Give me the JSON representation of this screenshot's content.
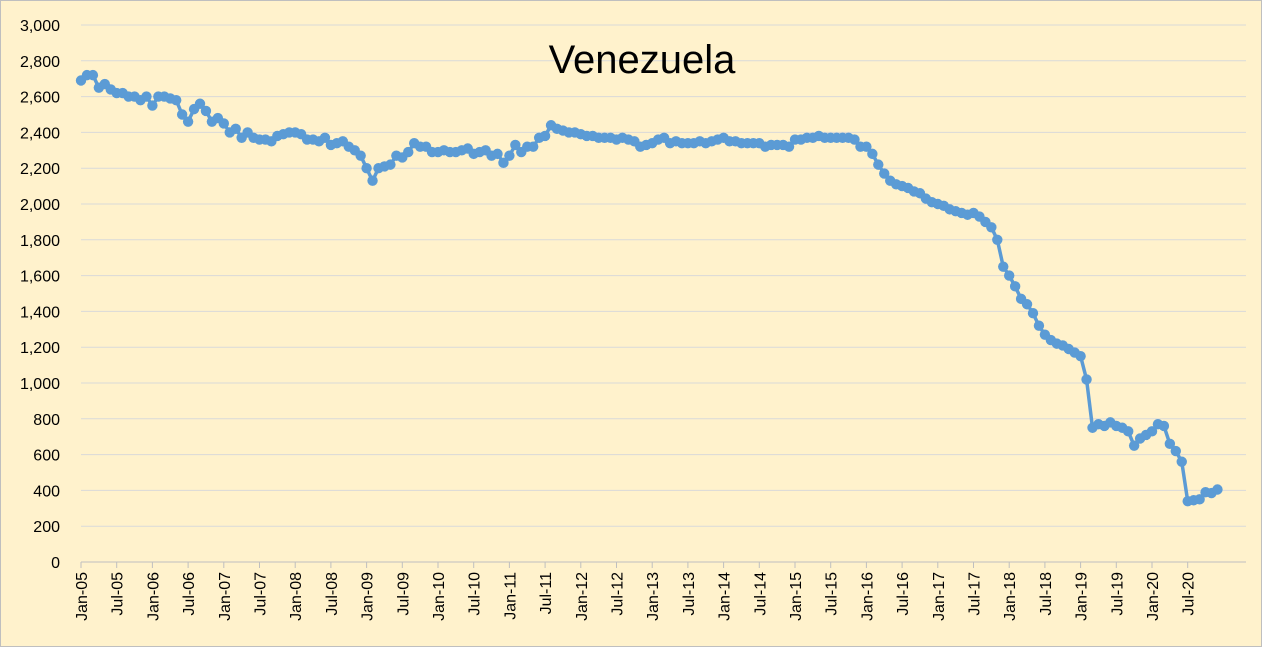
{
  "chart_data": {
    "type": "line",
    "title": "Venezuela",
    "xlabel": "",
    "ylabel": "",
    "ylim": [
      0,
      3000
    ],
    "y_ticks": [
      "0",
      "200",
      "400",
      "600",
      "800",
      "1,000",
      "1,200",
      "1,400",
      "1,600",
      "1,800",
      "2,000",
      "2,200",
      "2,400",
      "2,600",
      "2,800",
      "3,000"
    ],
    "x_ticks": [
      "Jan-05",
      "Jul-05",
      "Jan-06",
      "Jul-06",
      "Jan-07",
      "Jul-07",
      "Jan-08",
      "Jul-08",
      "Jan-09",
      "Jul-09",
      "Jan-10",
      "Jul-10",
      "Jan-11",
      "Jul-11",
      "Jan-12",
      "Jul-12",
      "Jan-13",
      "Jul-13",
      "Jan-14",
      "Jul-14",
      "Jan-15",
      "Jul-15",
      "Jan-16",
      "Jul-16",
      "Jan-17",
      "Jul-17",
      "Jan-18",
      "Jul-18",
      "Jan-19",
      "Jul-19",
      "Jan-20",
      "Jul-20"
    ],
    "grid": true,
    "legend": "none",
    "colors": {
      "series": "#5b9bd5",
      "background": "#fff2cc",
      "grid": "#d9d9d9"
    },
    "series": [
      {
        "x_start": "Jan-05",
        "frequency": "monthly",
        "values": [
          2690,
          2720,
          2720,
          2650,
          2670,
          2640,
          2620,
          2620,
          2600,
          2600,
          2580,
          2600,
          2550,
          2600,
          2600,
          2590,
          2580,
          2500,
          2460,
          2530,
          2560,
          2520,
          2460,
          2480,
          2450,
          2400,
          2420,
          2370,
          2400,
          2370,
          2360,
          2360,
          2350,
          2380,
          2390,
          2400,
          2400,
          2390,
          2360,
          2360,
          2350,
          2370,
          2330,
          2340,
          2350,
          2320,
          2300,
          2270,
          2200,
          2130,
          2200,
          2210,
          2220,
          2270,
          2260,
          2290,
          2340,
          2320,
          2320,
          2290,
          2290,
          2300,
          2290,
          2290,
          2300,
          2310,
          2280,
          2290,
          2300,
          2270,
          2280,
          2230,
          2270,
          2330,
          2290,
          2320,
          2320,
          2370,
          2380,
          2440,
          2420,
          2410,
          2400,
          2400,
          2390,
          2380,
          2380,
          2370,
          2370,
          2370,
          2360,
          2370,
          2360,
          2350,
          2320,
          2330,
          2340,
          2360,
          2370,
          2340,
          2350,
          2340,
          2340,
          2340,
          2350,
          2340,
          2350,
          2360,
          2370,
          2350,
          2350,
          2340,
          2340,
          2340,
          2340,
          2320,
          2330,
          2330,
          2330,
          2320,
          2360,
          2360,
          2370,
          2370,
          2380,
          2370,
          2370,
          2370,
          2370,
          2370,
          2360,
          2320,
          2320,
          2280,
          2220,
          2170,
          2130,
          2110,
          2100,
          2090,
          2070,
          2060,
          2030,
          2010,
          2000,
          1990,
          1970,
          1960,
          1950,
          1940,
          1950,
          1930,
          1900,
          1870,
          1800,
          1650,
          1600,
          1540,
          1470,
          1440,
          1390,
          1320,
          1270,
          1240,
          1220,
          1210,
          1190,
          1170,
          1150,
          1020,
          750,
          770,
          760,
          780,
          760,
          750,
          730,
          650,
          690,
          710,
          730,
          770,
          760,
          660,
          620,
          560,
          340,
          345,
          350,
          390,
          385,
          405
        ]
      }
    ]
  }
}
